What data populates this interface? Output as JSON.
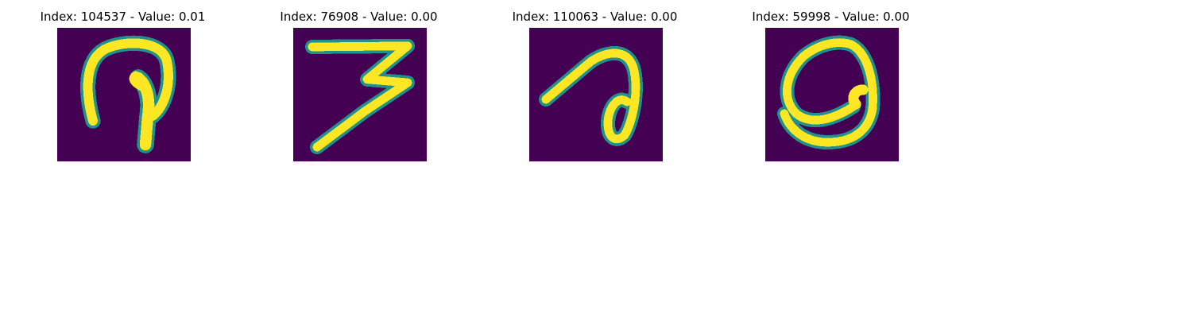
{
  "colormap": {
    "background": "#440154",
    "low": "#3b528b",
    "mid": "#21918c",
    "mid_high": "#5ec962",
    "high": "#fde725"
  },
  "panels": [
    {
      "title": "Index: 104537 - Value: 0.01",
      "depicts": "handwritten glyph resembling a loop with a descending stroke"
    },
    {
      "title": "Index: 76908 - Value: 0.00",
      "depicts": "handwritten digit 3"
    },
    {
      "title": "Index: 110063 - Value: 0.00",
      "depicts": "handwritten glyph with a diagonal stroke and a small loop"
    },
    {
      "title": "Index: 59998 - Value: 0.00",
      "depicts": "handwritten glyph resembling a rounded a-like loop"
    }
  ]
}
